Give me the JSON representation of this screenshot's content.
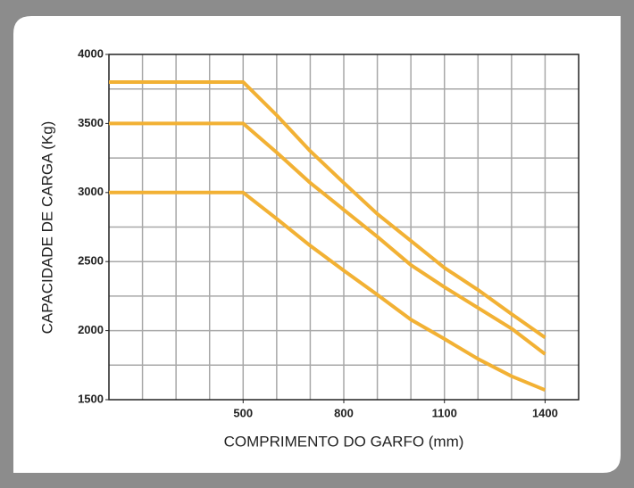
{
  "chart_data": {
    "type": "line",
    "x_label": "COMPRIMENTO DO GARFO (mm)",
    "y_label": "CAPACIDADE DE CARGA (Kg)",
    "x": [
      100,
      500,
      600,
      700,
      800,
      900,
      1000,
      1100,
      1200,
      1300,
      1400
    ],
    "series": [
      {
        "color": "#f2b134",
        "values": [
          3800,
          3800,
          3560,
          3300,
          3070,
          2845,
          2650,
          2455,
          2295,
          2120,
          1950
        ]
      },
      {
        "color": "#f2b134",
        "values": [
          3500,
          3500,
          3290,
          3070,
          2875,
          2680,
          2475,
          2315,
          2165,
          2015,
          1830
        ]
      },
      {
        "color": "#f2b134",
        "values": [
          3000,
          3000,
          2810,
          2615,
          2435,
          2260,
          2080,
          1940,
          1795,
          1670,
          1570
        ]
      }
    ],
    "xlim": [
      100,
      1500
    ],
    "xticks": [
      500,
      800,
      1100,
      1400
    ],
    "ylim": [
      1500,
      4000
    ],
    "yticks": [
      1500,
      2000,
      2500,
      3000,
      3500,
      4000
    ],
    "grid": true,
    "xgrid_step": 100,
    "ygrid_step": 250
  }
}
